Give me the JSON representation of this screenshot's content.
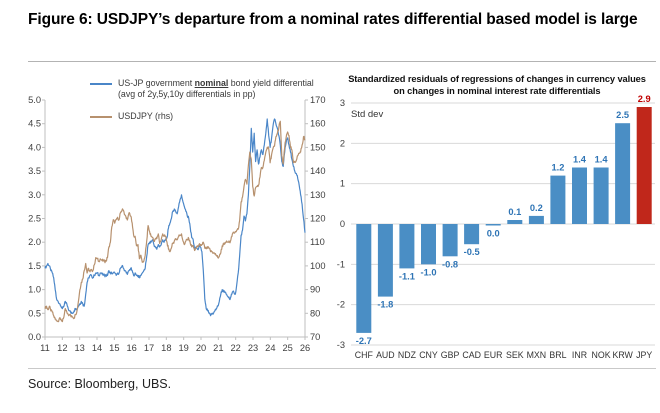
{
  "page": {
    "title": "Figure 6: USDJPY’s departure from a nominal rates differential based model is large",
    "source": "Source: Bloomberg, UBS."
  },
  "colors": {
    "line_blue": "#4a86c8",
    "line_tan": "#b7916e",
    "bar_blue": "#4a8ec5",
    "bar_red": "#c0271b",
    "label_blue": "#2e74b5",
    "label_red": "#c00000",
    "axis_text": "#404040",
    "gridline": "#d9d9d9",
    "axis_line": "#bfbfbf"
  },
  "left_chart": {
    "legend": [
      {
        "parts": [
          "US-JP government ",
          "nominal",
          " bond yield differential (avg of 2y,5y,10y differentials in pp)"
        ]
      },
      {
        "label": "USDJPY (rhs)"
      }
    ]
  },
  "right_chart": {
    "title_line1": "Standardized residuals of regressions of changes in currency values",
    "title_line2": "on changes in nominal interest rate differentials",
    "unit_label": "Std dev"
  },
  "chart_data": [
    {
      "type": "line",
      "title": "US-JP government nominal bond yield differential vs USDJPY",
      "x_range": [
        11,
        26
      ],
      "x_tick_labels": [
        "11",
        "12",
        "13",
        "14",
        "15",
        "16",
        "17",
        "18",
        "19",
        "20",
        "21",
        "22",
        "23",
        "24",
        "25",
        "26"
      ],
      "left_axis": {
        "min": 0.0,
        "max": 5.0,
        "step": 0.5,
        "decimals": 1
      },
      "right_axis": {
        "min": 70,
        "max": 170,
        "step": 10,
        "decimals": 0
      },
      "x_start_year": 2011,
      "x_step_months": 1,
      "series": [
        {
          "name": "US-JP government nominal bond yield differential (avg of 2y,5y,10y differentials in pp)",
          "axis": "left",
          "color": "#4a86c8",
          "values": [
            1.45,
            1.5,
            1.55,
            1.5,
            1.4,
            1.35,
            1.25,
            1.0,
            0.8,
            0.75,
            0.7,
            0.65,
            0.6,
            0.65,
            0.75,
            0.7,
            0.6,
            0.55,
            0.5,
            0.5,
            0.55,
            0.6,
            0.6,
            0.65,
            0.7,
            0.75,
            0.7,
            0.65,
            0.9,
            1.15,
            1.25,
            1.3,
            1.3,
            1.25,
            1.3,
            1.35,
            1.35,
            1.3,
            1.35,
            1.35,
            1.3,
            1.3,
            1.3,
            1.3,
            1.4,
            1.35,
            1.35,
            1.35,
            1.35,
            1.3,
            1.35,
            1.35,
            1.45,
            1.5,
            1.45,
            1.4,
            1.35,
            1.35,
            1.4,
            1.45,
            1.4,
            1.3,
            1.35,
            1.3,
            1.3,
            1.25,
            1.3,
            1.35,
            1.4,
            1.45,
            1.7,
            1.95,
            2.0,
            2.0,
            2.05,
            1.95,
            1.9,
            1.85,
            1.95,
            1.9,
            1.95,
            2.05,
            2.0,
            2.05,
            2.1,
            2.3,
            2.4,
            2.5,
            2.65,
            2.7,
            2.65,
            2.6,
            2.75,
            2.9,
            3.0,
            2.85,
            2.75,
            2.65,
            2.55,
            2.5,
            2.3,
            2.1,
            2.05,
            1.85,
            1.9,
            1.85,
            1.9,
            1.9,
            1.8,
            1.4,
            0.8,
            0.6,
            0.55,
            0.5,
            0.45,
            0.5,
            0.5,
            0.55,
            0.6,
            0.65,
            0.75,
            0.9,
            1.0,
            0.95,
            0.95,
            0.9,
            0.85,
            0.8,
            0.85,
            0.95,
            0.95,
            0.9,
            1.1,
            1.35,
            1.7,
            2.15,
            2.25,
            2.55,
            2.45,
            2.6,
            3.0,
            3.6,
            4.4,
            3.9,
            4.3,
            3.7,
            3.95,
            3.65,
            3.8,
            3.95,
            3.85,
            4.05,
            4.3,
            4.6,
            4.25,
            4.0,
            4.2,
            4.45,
            4.6,
            4.5,
            4.4,
            4.25,
            4.05,
            3.7,
            3.6,
            3.9,
            4.1,
            4.2,
            4.05,
            3.9,
            3.75,
            3.6,
            3.5,
            3.45,
            3.35,
            3.2,
            3.0,
            2.8,
            2.5,
            2.2
          ]
        },
        {
          "name": "USDJPY (rhs)",
          "axis": "right",
          "color": "#b7916e",
          "values": [
            82.0,
            83.0,
            81.5,
            83.0,
            81.0,
            80.5,
            79.0,
            77.5,
            77.0,
            76.5,
            78.0,
            77.5,
            76.5,
            78.5,
            82.0,
            80.5,
            79.5,
            79.5,
            78.5,
            78.5,
            78.0,
            79.5,
            81.0,
            85.0,
            90.0,
            93.0,
            94.5,
            98.0,
            101.0,
            97.0,
            99.0,
            97.5,
            98.5,
            98.0,
            100.5,
            103.5,
            103.0,
            102.0,
            103.0,
            102.5,
            102.0,
            102.0,
            102.0,
            103.5,
            108.0,
            110.0,
            116.5,
            119.5,
            118.0,
            119.5,
            120.5,
            119.5,
            122.5,
            123.5,
            123.5,
            121.5,
            120.0,
            120.0,
            122.5,
            121.0,
            118.0,
            113.0,
            112.5,
            108.5,
            109.0,
            103.0,
            104.5,
            101.5,
            102.0,
            104.5,
            110.5,
            117.0,
            114.5,
            112.5,
            112.0,
            110.5,
            111.5,
            111.5,
            113.5,
            109.5,
            111.0,
            113.5,
            112.5,
            112.5,
            110.0,
            107.0,
            106.0,
            107.5,
            109.5,
            110.5,
            111.5,
            111.0,
            112.5,
            113.0,
            113.5,
            110.5,
            109.0,
            110.5,
            111.0,
            111.5,
            109.5,
            108.0,
            108.5,
            106.5,
            107.5,
            108.5,
            109.0,
            108.5,
            109.0,
            110.0,
            107.5,
            107.5,
            107.5,
            107.5,
            106.0,
            106.0,
            105.5,
            105.0,
            104.5,
            103.5,
            104.0,
            105.5,
            108.5,
            109.0,
            109.5,
            110.5,
            110.0,
            110.0,
            111.0,
            113.5,
            114.0,
            114.5,
            115.0,
            115.5,
            119.0,
            127.0,
            129.0,
            133.5,
            136.5,
            134.5,
            142.5,
            148.0,
            145.0,
            133.5,
            129.5,
            133.0,
            133.5,
            134.0,
            137.5,
            141.5,
            141.5,
            144.5,
            148.0,
            150.0,
            149.5,
            143.5,
            147.0,
            149.5,
            150.5,
            154.5,
            156.0,
            158.5,
            161.0,
            146.5,
            143.0,
            150.0,
            154.0,
            156.5,
            155.0,
            150.0,
            149.0,
            143.5,
            144.0,
            144.5,
            146.5,
            147.5,
            148.0,
            151.0,
            154.5,
            153.0
          ]
        }
      ]
    },
    {
      "type": "bar",
      "title": "Standardized residuals of regressions of changes in currency values on changes in nominal interest rate differentials",
      "ylabel": "Std dev",
      "ylim": [
        -3,
        3
      ],
      "ytick_step": 1,
      "categories": [
        "CHF",
        "AUD",
        "NDZ",
        "CNY",
        "GBP",
        "CAD",
        "EUR",
        "SEK",
        "MXN",
        "BRL",
        "INR",
        "NOK",
        "KRW",
        "JPY"
      ],
      "values": [
        -2.7,
        -1.8,
        -1.1,
        -1.0,
        -0.8,
        -0.5,
        0.0,
        0.1,
        0.2,
        1.2,
        1.4,
        1.4,
        2.5,
        2.9
      ],
      "highlight_category": "JPY",
      "bar_colors": {
        "default": "#4a8ec5",
        "highlight": "#c0271b"
      },
      "label_colors": {
        "default": "#2e74b5",
        "highlight": "#c00000"
      }
    }
  ]
}
